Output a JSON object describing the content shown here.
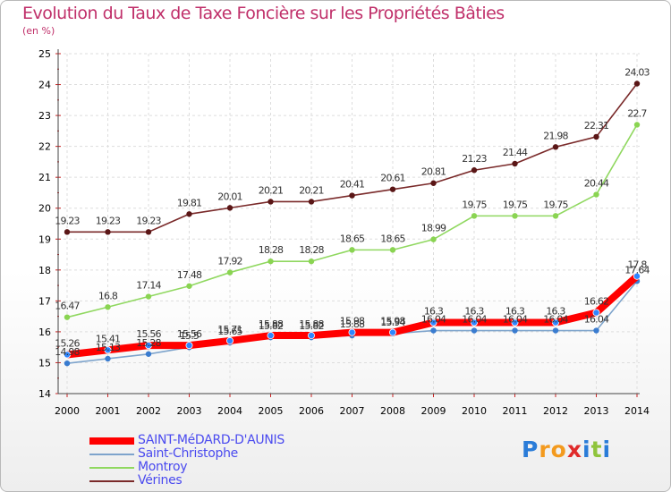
{
  "chart_data": {
    "type": "line",
    "title": "Evolution du Taux de Taxe Foncière sur les Propriétés Bâties",
    "subtitle": "(en %)",
    "xlabel": "",
    "ylabel": "",
    "ylim": [
      14,
      25
    ],
    "yticks": [
      14,
      15,
      16,
      17,
      18,
      19,
      20,
      21,
      22,
      23,
      24,
      25
    ],
    "grid": true,
    "x": [
      "2000",
      "2001",
      "2002",
      "2003",
      "2004",
      "2005",
      "2006",
      "2007",
      "2008",
      "2009",
      "2010",
      "2011",
      "2012",
      "2013",
      "2014"
    ],
    "series": [
      {
        "name": "Vérines",
        "color": "#7a2a2a",
        "dot": "#5a1616",
        "labels": [
          "19.23",
          "19.23",
          "19.23",
          "19.81",
          "20.01",
          "20.21",
          "20.21",
          "20.41",
          "20.61",
          "20.81",
          "21.23",
          "21.44",
          "21.98",
          "22.31",
          "24.03"
        ],
        "values": [
          19.23,
          19.23,
          19.23,
          19.81,
          20.01,
          20.21,
          20.21,
          20.41,
          20.61,
          20.81,
          21.23,
          21.44,
          21.98,
          22.31,
          24.03
        ]
      },
      {
        "name": "Montroy",
        "color": "#90d860",
        "dot": "#8ad452",
        "labels": [
          "16.47",
          "16.8",
          "17.14",
          "17.48",
          "17.92",
          "18.28",
          "18.28",
          "18.65",
          "18.65",
          "18.99",
          "19.75",
          "19.75",
          "19.75",
          "20.44",
          "22.7"
        ],
        "values": [
          16.47,
          16.8,
          17.14,
          17.48,
          17.92,
          18.28,
          18.28,
          18.65,
          18.65,
          18.99,
          19.75,
          19.75,
          19.75,
          20.44,
          22.7
        ]
      },
      {
        "name": "Saint-Christophe",
        "color": "#7ea4cc",
        "dot": "#3a7cd0",
        "labels": [
          "14.98",
          "15.13",
          "15.28",
          "15.5",
          "15.65",
          "15.82",
          "15.82",
          "15.88",
          "15.94",
          "16.04",
          "16.04",
          "16.04",
          "16.04",
          "16.04",
          "17.64"
        ],
        "values": [
          14.98,
          15.13,
          15.28,
          15.5,
          15.65,
          15.82,
          15.82,
          15.88,
          15.94,
          16.04,
          16.04,
          16.04,
          16.04,
          16.04,
          17.64
        ]
      },
      {
        "name": "SAINT-MéDARD-D'AUNIS",
        "color": "#ff0000",
        "dot": "#2f86ff",
        "labels": [
          "15.26",
          "15.41",
          "15.56",
          "15.56",
          "15.71",
          "15.88",
          "15.88",
          "15.98",
          "15.98",
          "16.3",
          "16.3",
          "16.3",
          "16.3",
          "16.62",
          "17.8"
        ],
        "values": [
          15.26,
          15.41,
          15.56,
          15.56,
          15.71,
          15.88,
          15.88,
          15.98,
          15.98,
          16.3,
          16.3,
          16.3,
          16.3,
          16.62,
          17.8
        ]
      }
    ]
  },
  "legend": [
    {
      "label": "SAINT-MéDARD-D'AUNIS",
      "color": "#ff0000",
      "thickness": "thick"
    },
    {
      "label": "Saint-Christophe",
      "color": "#7ea4cc",
      "thickness": "thin"
    },
    {
      "label": "Montroy",
      "color": "#90d860",
      "thickness": "thin"
    },
    {
      "label": "Vérines",
      "color": "#7a2a2a",
      "thickness": "thin"
    }
  ],
  "logo": {
    "text": "Proxiti"
  }
}
